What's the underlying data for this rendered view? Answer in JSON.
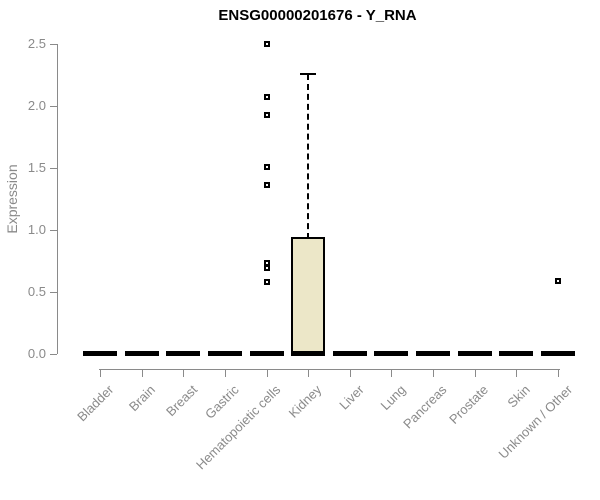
{
  "chart_data": {
    "type": "boxplot",
    "title": "ENSG00000201676 - Y_RNA",
    "xlabel": "",
    "ylabel": "Expression",
    "ylim": [
      0,
      2.5
    ],
    "yticks": [
      "0.0",
      "0.5",
      "1.0",
      "1.5",
      "2.0",
      "2.5"
    ],
    "grid": false,
    "legend": "none",
    "categories": [
      "Bladder",
      "Brain",
      "Breast",
      "Gastric",
      "Hematopoietic cells",
      "Kidney",
      "Liver",
      "Lung",
      "Pancreas",
      "Prostate",
      "Skin",
      "Unknown / Other"
    ],
    "boxes": [
      {
        "category": "Bladder",
        "whisker_low": 0,
        "q1": 0,
        "median": 0,
        "q3": 0.01,
        "whisker_high": 0.01,
        "outliers": []
      },
      {
        "category": "Brain",
        "whisker_low": 0,
        "q1": 0,
        "median": 0,
        "q3": 0.01,
        "whisker_high": 0.01,
        "outliers": []
      },
      {
        "category": "Breast",
        "whisker_low": 0,
        "q1": 0,
        "median": 0,
        "q3": 0.01,
        "whisker_high": 0.01,
        "outliers": []
      },
      {
        "category": "Gastric",
        "whisker_low": 0,
        "q1": 0,
        "median": 0,
        "q3": 0.01,
        "whisker_high": 0.01,
        "outliers": []
      },
      {
        "category": "Hematopoietic cells",
        "whisker_low": 0,
        "q1": 0,
        "median": 0,
        "q3": 0.01,
        "whisker_high": 0.01,
        "outliers": [
          0.58,
          0.69,
          0.73,
          1.36,
          1.51,
          1.93,
          2.07,
          2.5
        ]
      },
      {
        "category": "Kidney",
        "whisker_low": 0,
        "q1": 0,
        "median": 0.01,
        "q3": 0.93,
        "whisker_high": 2.26,
        "outliers": []
      },
      {
        "category": "Liver",
        "whisker_low": 0,
        "q1": 0,
        "median": 0,
        "q3": 0.01,
        "whisker_high": 0.01,
        "outliers": []
      },
      {
        "category": "Lung",
        "whisker_low": 0,
        "q1": 0,
        "median": 0,
        "q3": 0.01,
        "whisker_high": 0.01,
        "outliers": []
      },
      {
        "category": "Pancreas",
        "whisker_low": 0,
        "q1": 0,
        "median": 0,
        "q3": 0.01,
        "whisker_high": 0.01,
        "outliers": []
      },
      {
        "category": "Prostate",
        "whisker_low": 0,
        "q1": 0,
        "median": 0,
        "q3": 0.01,
        "whisker_high": 0.01,
        "outliers": []
      },
      {
        "category": "Skin",
        "whisker_low": 0,
        "q1": 0,
        "median": 0,
        "q3": 0.01,
        "whisker_high": 0.01,
        "outliers": []
      },
      {
        "category": "Unknown / Other",
        "whisker_low": 0,
        "q1": 0,
        "median": 0,
        "q3": 0.01,
        "whisker_high": 0.01,
        "outliers": [
          0.59
        ]
      }
    ],
    "colors": {
      "background": "#ffffff",
      "box_fill": "#ece7c8",
      "box_border": "#000000",
      "whisker": "#000000",
      "outlier_border": "#000000",
      "axis": "#8a8a8a",
      "axis_text": "#8a8a8a",
      "title_text": "#000000"
    }
  }
}
